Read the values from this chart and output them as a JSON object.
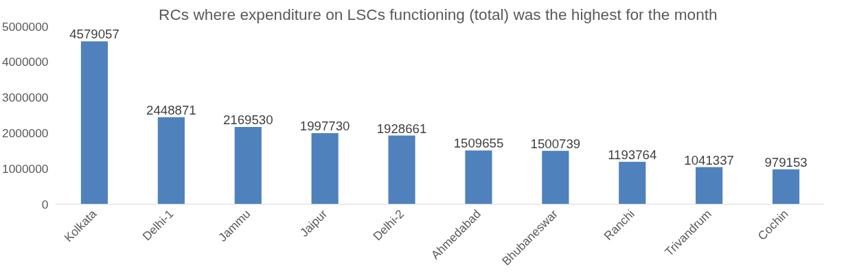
{
  "chart_data": {
    "type": "bar",
    "title": "RCs where expenditure on  LSCs functioning (total) was the highest for the month",
    "categories": [
      "Kolkata",
      "Delhi-1",
      "Jammu",
      "Jaipur",
      "Delhi-2",
      "Ahmedabad",
      "Bhubaneswar",
      "Ranchi",
      "Trivandrum",
      "Cochin"
    ],
    "values": [
      4579057,
      2448871,
      2169530,
      1997730,
      1928661,
      1509655,
      1500739,
      1193764,
      1041337,
      979153
    ],
    "color": "#4f81bd",
    "ylim": [
      0,
      5000000
    ],
    "yticks": [
      0,
      1000000,
      2000000,
      3000000,
      4000000,
      5000000
    ],
    "grid": false,
    "data_labels": true
  }
}
